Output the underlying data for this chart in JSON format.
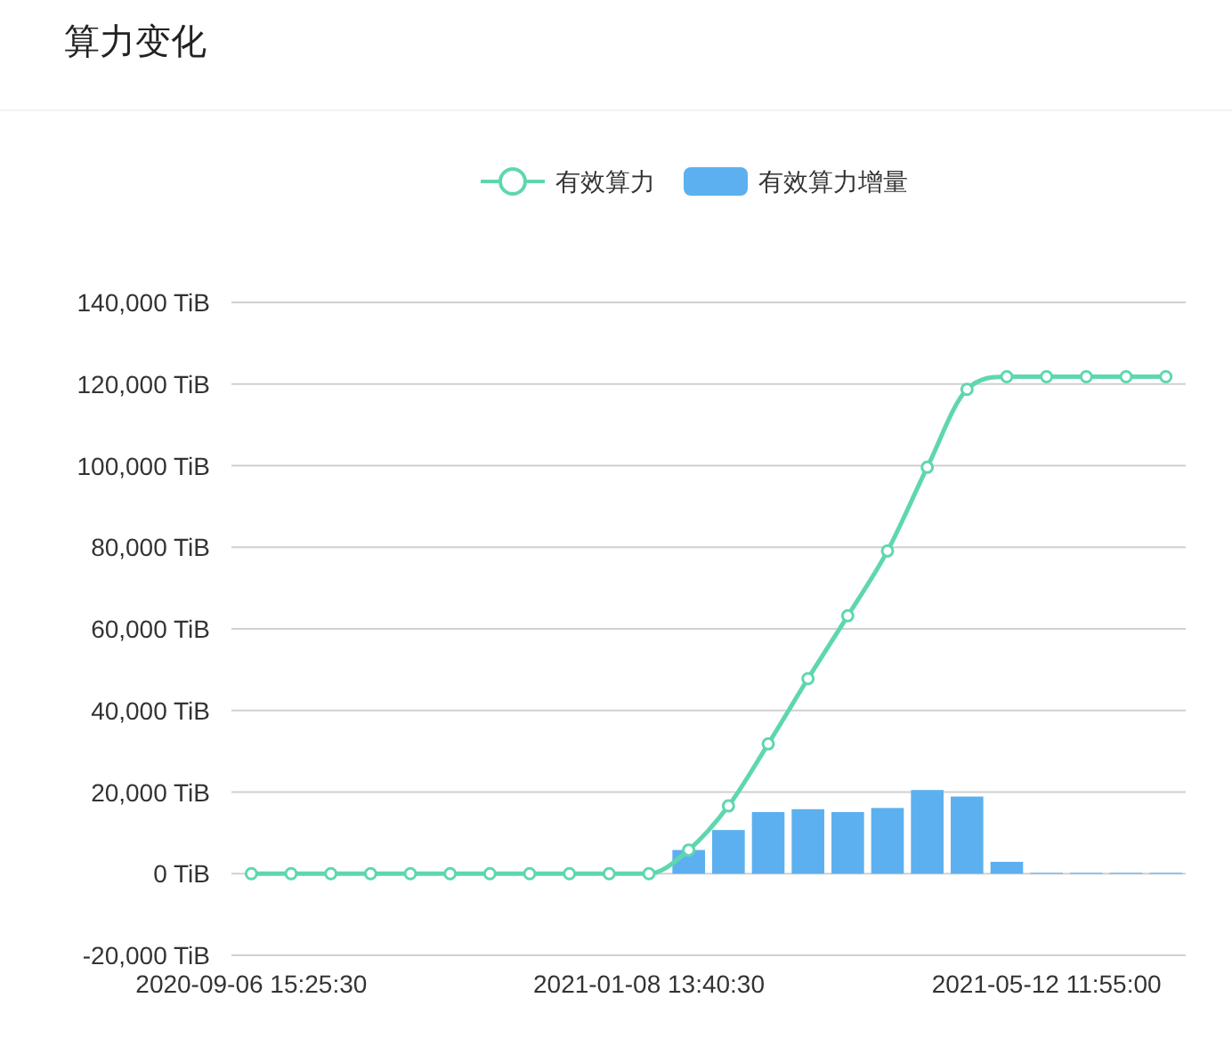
{
  "chart_data": {
    "type": "bar",
    "title": "算力变化",
    "categories": [
      "2020-09-06 15:25:30",
      null,
      null,
      null,
      null,
      null,
      null,
      null,
      null,
      null,
      "2021-01-08 13:40:30",
      null,
      null,
      null,
      null,
      null,
      null,
      null,
      null,
      null,
      "2021-05-12 11:55:00",
      null,
      null,
      null
    ],
    "series": [
      {
        "name": "有效算力",
        "type": "line",
        "color": "#5fd7ae",
        "marker": "circle",
        "values": [
          0,
          0,
          0,
          0,
          0,
          0,
          0,
          0,
          0,
          0,
          0,
          5800,
          16600,
          31800,
          47800,
          63200,
          79100,
          99600,
          118700,
          121800,
          121800,
          121800,
          121800,
          121800
        ]
      },
      {
        "name": "有效算力增量",
        "color": "#5cb0ef",
        "values": [
          null,
          null,
          null,
          null,
          null,
          null,
          null,
          null,
          null,
          null,
          null,
          5800,
          10700,
          15100,
          15800,
          15100,
          16100,
          20500,
          18900,
          2900,
          200,
          200,
          200,
          200
        ]
      }
    ],
    "ylim": [
      -20000,
      140000
    ],
    "yticks": [
      {
        "value": -20000,
        "label": "-20,000 TiB"
      },
      {
        "value": 0,
        "label": "0 TiB"
      },
      {
        "value": 20000,
        "label": "20,000 TiB"
      },
      {
        "value": 40000,
        "label": "40,000 TiB"
      },
      {
        "value": 60000,
        "label": "60,000 TiB"
      },
      {
        "value": 80000,
        "label": "80,000 TiB"
      },
      {
        "value": 100000,
        "label": "100,000 TiB"
      },
      {
        "value": 120000,
        "label": "120,000 TiB"
      },
      {
        "value": 140000,
        "label": "140,000 TiB"
      }
    ],
    "grid": "y",
    "legend": "top"
  }
}
